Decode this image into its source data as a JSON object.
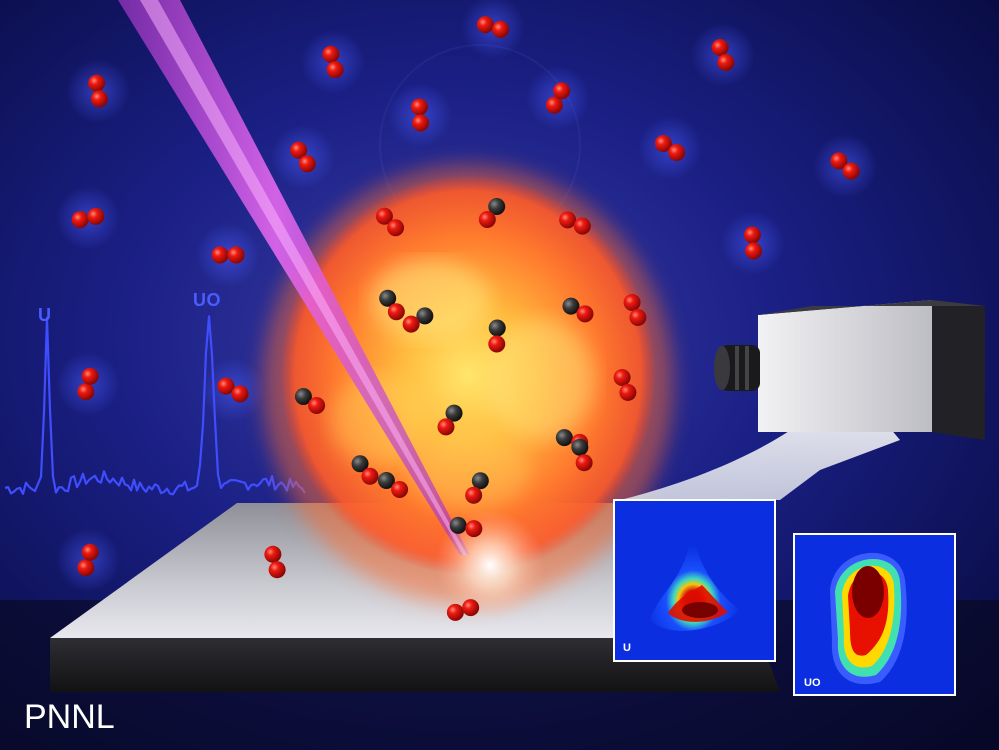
{
  "spectrum": {
    "peak_u_label": "U",
    "peak_uo_label": "UO",
    "color": "#3f4dff"
  },
  "insets": [
    {
      "label": "U"
    },
    {
      "label": "UO"
    }
  ],
  "credit": "PNNL",
  "colors": {
    "background": "#0a0e5a",
    "laser": "#d24ddc",
    "fireball": "#ff8a3c",
    "molecule_red": "#e01010",
    "molecule_dark": "#333333"
  }
}
